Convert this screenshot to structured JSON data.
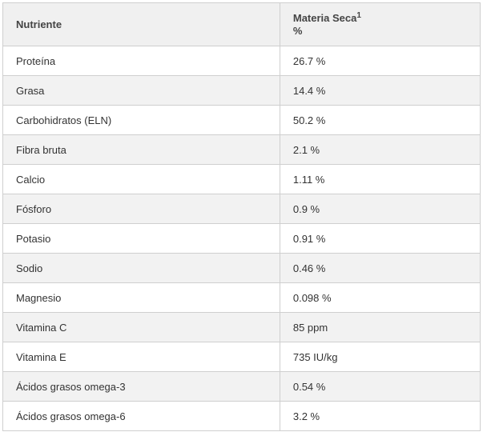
{
  "table": {
    "headers": {
      "nutrient": "Nutriente",
      "dry_matter": "Materia Seca",
      "dry_matter_footnote": "1",
      "dry_matter_unit": "%"
    },
    "rows": [
      {
        "nutrient": "Proteína",
        "value": "26.7 %"
      },
      {
        "nutrient": "Grasa",
        "value": "14.4 %"
      },
      {
        "nutrient": "Carbohidratos (ELN)",
        "value": "50.2 %"
      },
      {
        "nutrient": "Fibra bruta",
        "value": "2.1 %"
      },
      {
        "nutrient": "Calcio",
        "value": "1.11 %"
      },
      {
        "nutrient": "Fósforo",
        "value": "0.9 %"
      },
      {
        "nutrient": "Potasio",
        "value": "0.91 %"
      },
      {
        "nutrient": "Sodio",
        "value": "0.46 %"
      },
      {
        "nutrient": "Magnesio",
        "value": "0.098 %"
      },
      {
        "nutrient": "Vitamina C",
        "value": "85 ppm"
      },
      {
        "nutrient": "Vitamina E",
        "value": "735 IU/kg"
      },
      {
        "nutrient": "Ácidos grasos omega-3",
        "value": "0.54 %"
      },
      {
        "nutrient": "Ácidos grasos omega-6",
        "value": "3.2 %"
      }
    ]
  }
}
